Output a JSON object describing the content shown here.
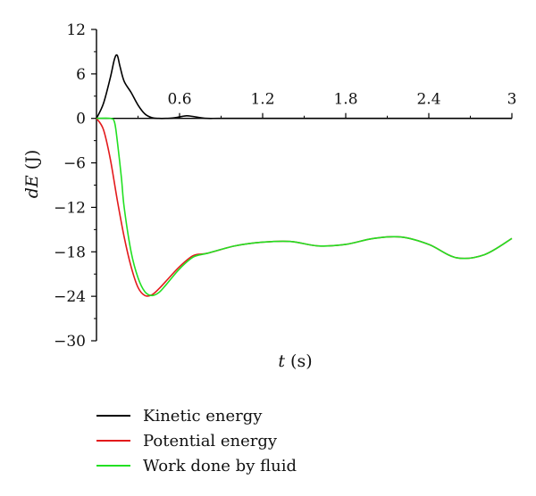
{
  "chart_data": {
    "type": "line",
    "title": "",
    "xlabel_var": "t",
    "xlabel_unit": " (s)",
    "ylabel_var": "dE",
    "ylabel_unit": " (J)",
    "xlim": [
      0,
      3
    ],
    "ylim": [
      -30,
      12
    ],
    "x_ticks": [
      0.6,
      1.2,
      1.8,
      2.4,
      3
    ],
    "x_tick_labels": [
      "0.6",
      "1.2",
      "1.8",
      "2.4",
      "3"
    ],
    "y_ticks": [
      12,
      6,
      0,
      -6,
      -12,
      -18,
      -24,
      -30
    ],
    "y_tick_labels": [
      "12",
      "6",
      "0",
      "−6",
      "−12",
      "−18",
      "−24",
      "−30"
    ],
    "grid": false,
    "legend_position": "bottom",
    "series": [
      {
        "name": "Kinetic energy",
        "color": "#000000",
        "x": [
          0,
          0.05,
          0.1,
          0.13,
          0.15,
          0.17,
          0.2,
          0.25,
          0.3,
          0.35,
          0.4,
          0.45,
          0.5,
          0.55,
          0.6,
          0.65,
          0.7,
          0.75,
          0.8,
          0.9,
          1.2,
          1.8,
          2.4,
          3
        ],
        "y": [
          0,
          2.0,
          5.5,
          8.0,
          8.5,
          7.0,
          5.0,
          3.5,
          1.8,
          0.6,
          0.1,
          0,
          0,
          0.05,
          0.2,
          0.35,
          0.25,
          0.1,
          0,
          0,
          0,
          0,
          0,
          0
        ]
      },
      {
        "name": "Potential energy",
        "color": "#e31a1c",
        "x": [
          0,
          0.05,
          0.1,
          0.15,
          0.2,
          0.25,
          0.3,
          0.35,
          0.4,
          0.45,
          0.5,
          0.6,
          0.7,
          0.8,
          1.0,
          1.2,
          1.4,
          1.6,
          1.8,
          2.0,
          2.2,
          2.4,
          2.6,
          2.8,
          3.0
        ],
        "y": [
          0,
          -1.5,
          -5.5,
          -11.0,
          -16.0,
          -20.0,
          -22.8,
          -23.9,
          -23.8,
          -23.0,
          -22.0,
          -20.0,
          -18.5,
          -18.2,
          -17.2,
          -16.7,
          -16.6,
          -17.2,
          -17.0,
          -16.2,
          -16.0,
          -17.0,
          -18.8,
          -18.4,
          -16.2
        ]
      },
      {
        "name": "Work done by fluid",
        "color": "#22e022",
        "x": [
          0,
          0.1,
          0.13,
          0.15,
          0.18,
          0.2,
          0.25,
          0.3,
          0.35,
          0.4,
          0.45,
          0.5,
          0.6,
          0.7,
          0.8,
          1.0,
          1.2,
          1.4,
          1.6,
          1.8,
          2.0,
          2.2,
          2.4,
          2.6,
          2.8,
          3.0
        ],
        "y": [
          0,
          0,
          -0.5,
          -3.0,
          -8.0,
          -12.0,
          -18.0,
          -21.5,
          -23.4,
          -23.9,
          -23.5,
          -22.5,
          -20.3,
          -18.7,
          -18.2,
          -17.2,
          -16.7,
          -16.6,
          -17.2,
          -17.0,
          -16.2,
          -16.0,
          -17.0,
          -18.8,
          -18.4,
          -16.2
        ]
      }
    ]
  }
}
